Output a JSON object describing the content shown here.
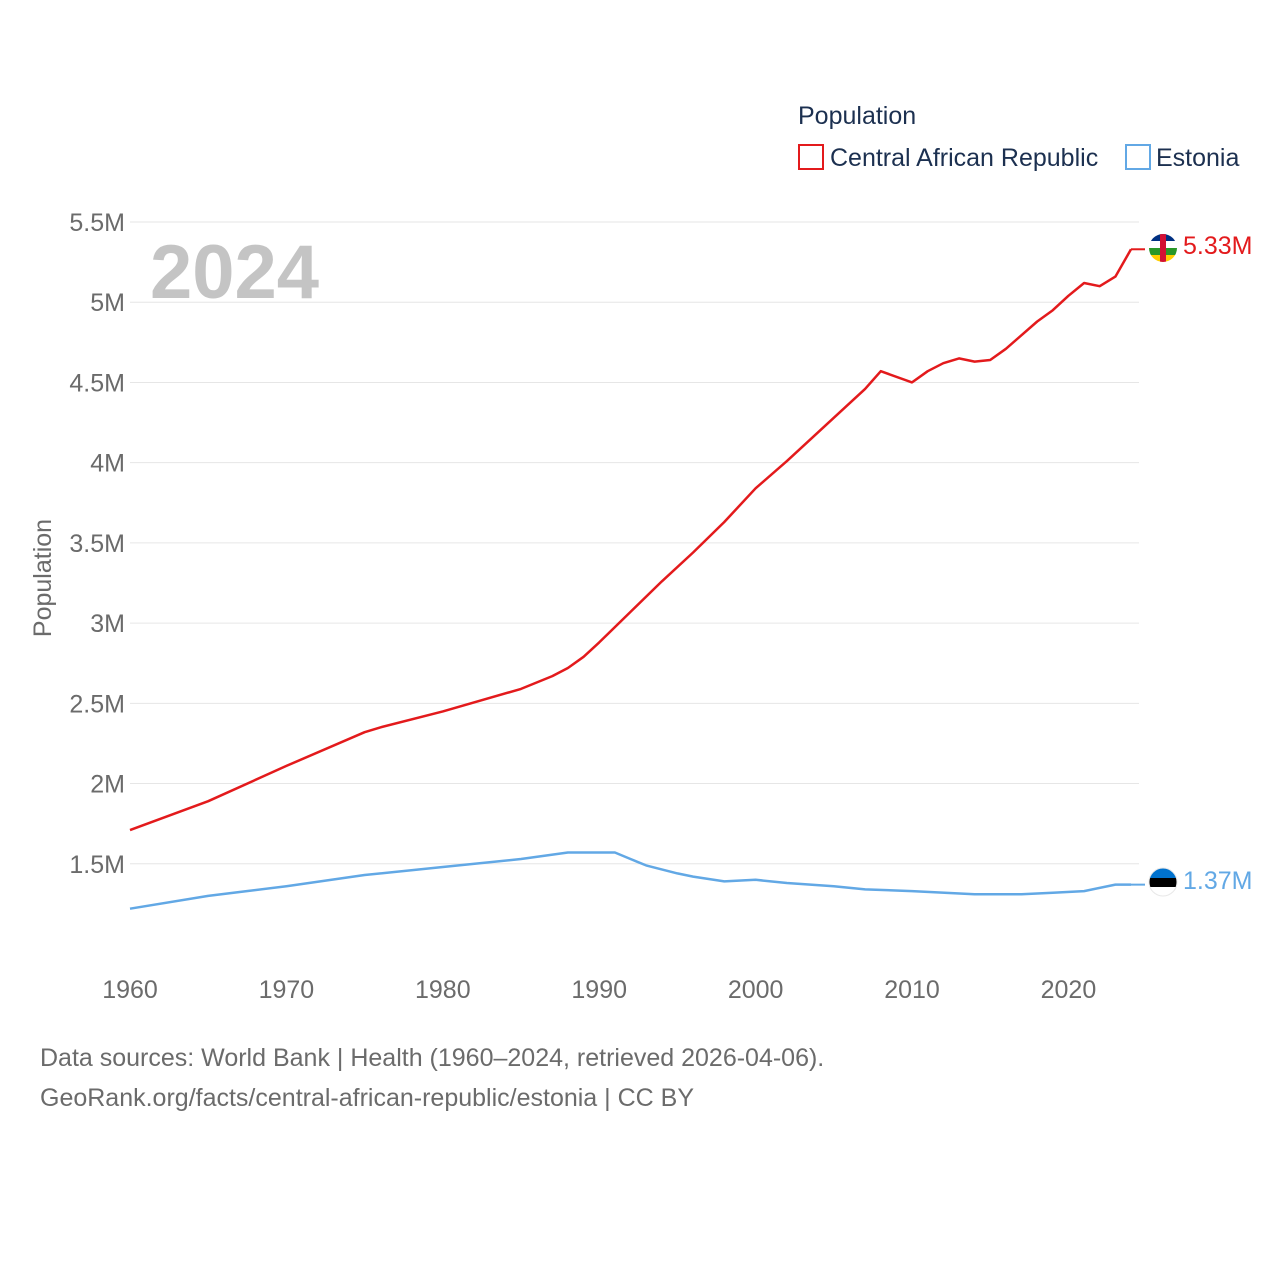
{
  "chart_data": {
    "type": "line",
    "title": "Population",
    "ylabel": "Population",
    "current_year": "2024",
    "ylim": [
      1000000,
      5500000
    ],
    "xlim": [
      1960,
      2024
    ],
    "y_ticks": [
      {
        "value": 1500000,
        "label": "1.5M"
      },
      {
        "value": 2000000,
        "label": "2M"
      },
      {
        "value": 2500000,
        "label": "2.5M"
      },
      {
        "value": 3000000,
        "label": "3M"
      },
      {
        "value": 3500000,
        "label": "3.5M"
      },
      {
        "value": 4000000,
        "label": "4M"
      },
      {
        "value": 4500000,
        "label": "4.5M"
      },
      {
        "value": 5000000,
        "label": "5M"
      },
      {
        "value": 5500000,
        "label": "5.5M"
      }
    ],
    "x_ticks": [
      {
        "value": 1960,
        "label": "1960"
      },
      {
        "value": 1970,
        "label": "1970"
      },
      {
        "value": 1980,
        "label": "1980"
      },
      {
        "value": 1990,
        "label": "1990"
      },
      {
        "value": 2000,
        "label": "2000"
      },
      {
        "value": 2010,
        "label": "2010"
      },
      {
        "value": 2020,
        "label": "2020"
      }
    ],
    "series": [
      {
        "name": "Central African Republic",
        "color": "#e31a1c",
        "end_label": "5.33M",
        "points": [
          [
            1960,
            1710000
          ],
          [
            1965,
            1890000
          ],
          [
            1970,
            2110000
          ],
          [
            1975,
            2320000
          ],
          [
            1976,
            2350000
          ],
          [
            1980,
            2450000
          ],
          [
            1985,
            2590000
          ],
          [
            1987,
            2670000
          ],
          [
            1988,
            2720000
          ],
          [
            1989,
            2790000
          ],
          [
            1990,
            2880000
          ],
          [
            1992,
            3070000
          ],
          [
            1994,
            3260000
          ],
          [
            1996,
            3440000
          ],
          [
            1998,
            3630000
          ],
          [
            2000,
            3840000
          ],
          [
            2002,
            4010000
          ],
          [
            2004,
            4190000
          ],
          [
            2006,
            4370000
          ],
          [
            2007,
            4460000
          ],
          [
            2008,
            4570000
          ],
          [
            2010,
            4500000
          ],
          [
            2011,
            4570000
          ],
          [
            2012,
            4620000
          ],
          [
            2013,
            4650000
          ],
          [
            2014,
            4630000
          ],
          [
            2015,
            4640000
          ],
          [
            2016,
            4710000
          ],
          [
            2018,
            4880000
          ],
          [
            2019,
            4950000
          ],
          [
            2020,
            5040000
          ],
          [
            2021,
            5120000
          ],
          [
            2022,
            5100000
          ],
          [
            2023,
            5160000
          ],
          [
            2024,
            5330000
          ]
        ]
      },
      {
        "name": "Estonia",
        "color": "#62a8e5",
        "end_label": "1.37M",
        "points": [
          [
            1960,
            1220000
          ],
          [
            1965,
            1300000
          ],
          [
            1970,
            1360000
          ],
          [
            1975,
            1430000
          ],
          [
            1980,
            1480000
          ],
          [
            1985,
            1530000
          ],
          [
            1988,
            1570000
          ],
          [
            1990,
            1570000
          ],
          [
            1991,
            1570000
          ],
          [
            1992,
            1530000
          ],
          [
            1993,
            1490000
          ],
          [
            1995,
            1440000
          ],
          [
            1996,
            1420000
          ],
          [
            1998,
            1390000
          ],
          [
            2000,
            1400000
          ],
          [
            2002,
            1380000
          ],
          [
            2005,
            1360000
          ],
          [
            2007,
            1340000
          ],
          [
            2010,
            1330000
          ],
          [
            2014,
            1310000
          ],
          [
            2017,
            1310000
          ],
          [
            2019,
            1320000
          ],
          [
            2021,
            1330000
          ],
          [
            2023,
            1370000
          ],
          [
            2024,
            1370000
          ]
        ]
      }
    ]
  },
  "footer": {
    "line1": "Data sources: World Bank | Health (1960–2024, retrieved 2026-04-06).",
    "line2": "GeoRank.org/facts/central-african-republic/estonia | CC BY"
  }
}
